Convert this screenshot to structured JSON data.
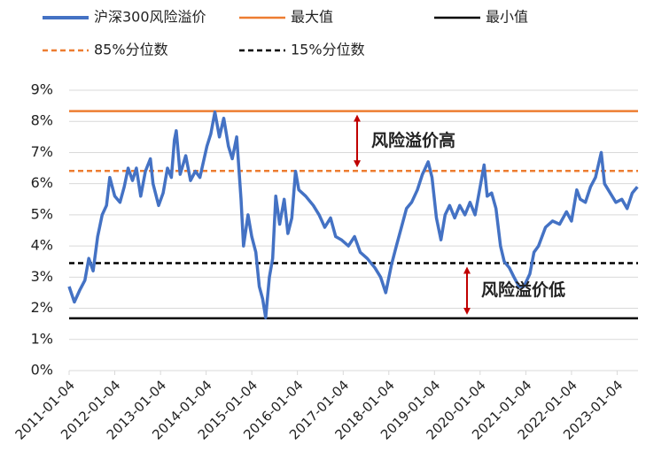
{
  "chart_data": {
    "type": "line",
    "series": [
      {
        "name": "沪深300风险溢价",
        "color": "#4472c4",
        "values": [
          2.7,
          2.2,
          2.6,
          2.9,
          3.6,
          3.2,
          4.3,
          5.0,
          5.3,
          6.2,
          5.6,
          5.4,
          5.9,
          6.5,
          6.1,
          6.5,
          5.6,
          6.4,
          6.8,
          6.0,
          5.3,
          5.7,
          6.5,
          6.2,
          7.4,
          7.7,
          6.3,
          6.9,
          6.1,
          6.4,
          6.2,
          7.2,
          7.6,
          8.3,
          7.5,
          8.1,
          7.2,
          6.8,
          7.5,
          5.5,
          4.0,
          5.0,
          4.3,
          3.8,
          2.7,
          2.3,
          1.7,
          3.0,
          3.6,
          5.6,
          4.7,
          5.5,
          4.4,
          4.9,
          6.4,
          5.8,
          5.6,
          5.3,
          5.0,
          4.6,
          4.9,
          4.3,
          4.2,
          4.0,
          4.3,
          3.8,
          3.6,
          3.3,
          3.0,
          2.5,
          3.4,
          4.0,
          4.6,
          5.2,
          5.4,
          5.8,
          6.3,
          6.7,
          6.2,
          4.9,
          4.2,
          5.0,
          5.3,
          4.9,
          5.3,
          5.0,
          5.4,
          5.0,
          6.6,
          5.6,
          5.7,
          5.2,
          4.0,
          3.5,
          3.3,
          3.0,
          2.7,
          2.7,
          3.1,
          3.8,
          4.0,
          4.6,
          4.8,
          4.7,
          5.1,
          4.8,
          5.8,
          5.5,
          5.4,
          5.9,
          6.2,
          7.0,
          6.0,
          5.4,
          5.5,
          5.2,
          5.7,
          5.9
        ]
      }
    ],
    "x": [
      "2011-01-04",
      "2011-02-15",
      "2011-04-01",
      "2011-05-10",
      "2011-06-10",
      "2011-07-15",
      "2011-08-20",
      "2011-09-25",
      "2011-10-30",
      "2011-11-25",
      "2012-01-04",
      "2012-02-15",
      "2012-03-20",
      "2012-04-20",
      "2012-05-25",
      "2012-06-25",
      "2012-07-30",
      "2012-09-05",
      "2012-10-15",
      "2012-11-05",
      "2012-12-20",
      "2013-01-25",
      "2013-03-01",
      "2013-04-01",
      "2013-04-25",
      "2013-05-10",
      "2013-06-10",
      "2013-07-25",
      "2013-09-01",
      "2013-10-10",
      "2013-11-15",
      "2014-01-10",
      "2014-02-10",
      "2014-03-15",
      "2014-04-20",
      "2014-05-25",
      "2014-07-01",
      "2014-08-01",
      "2014-09-05",
      "2014-10-10",
      "2014-10-30",
      "2014-12-05",
      "2015-01-04",
      "2015-02-05",
      "2015-03-05",
      "2015-04-01",
      "2015-04-25",
      "2015-05-25",
      "2015-06-20",
      "2015-07-15",
      "2015-08-15",
      "2015-09-20",
      "2015-10-20",
      "2015-11-20",
      "2015-12-20",
      "2016-01-15",
      "2016-03-10",
      "2016-05-10",
      "2016-06-25",
      "2016-08-10",
      "2016-09-25",
      "2016-11-05",
      "2016-12-20",
      "2017-02-15",
      "2017-04-05",
      "2017-05-20",
      "2017-07-15",
      "2017-09-15",
      "2017-10-30",
      "2017-12-10",
      "2018-01-25",
      "2018-03-05",
      "2018-04-15",
      "2018-05-25",
      "2018-07-05",
      "2018-08-20",
      "2018-09-30",
      "2018-11-15",
      "2018-12-15",
      "2019-01-20",
      "2019-02-25",
      "2019-03-30",
      "2019-05-05",
      "2019-06-15",
      "2019-07-25",
      "2019-09-05",
      "2019-10-15",
      "2019-11-25",
      "2020-02-05",
      "2020-03-01",
      "2020-04-05",
      "2020-05-10",
      "2020-06-15",
      "2020-07-15",
      "2020-08-25",
      "2020-10-01",
      "2020-11-10",
      "2020-12-20",
      "2021-02-05",
      "2021-03-10",
      "2021-04-15",
      "2021-06-10",
      "2021-08-05",
      "2021-10-01",
      "2021-11-25",
      "2022-01-04",
      "2022-02-15",
      "2022-03-15",
      "2022-04-25",
      "2022-06-05",
      "2022-07-15",
      "2022-08-30",
      "2022-09-25",
      "2022-12-25",
      "2023-02-10",
      "2023-03-25",
      "2023-05-05",
      "2023-06-15"
    ],
    "reference_lines": [
      {
        "name": "最大值",
        "value": 8.33,
        "color": "#ed7d31",
        "style": "solid"
      },
      {
        "name": "最小值",
        "value": 1.68,
        "color": "#000000",
        "style": "solid"
      },
      {
        "name": "85%分位数",
        "value": 6.41,
        "color": "#ed7d31",
        "style": "dashed"
      },
      {
        "name": "15%分位数",
        "value": 3.45,
        "color": "#000000",
        "style": "dashed"
      }
    ],
    "annotations": [
      "风险溢价高",
      "风险溢价低"
    ],
    "annotation_color": "#c00000",
    "xlim": [
      "2011-01-04",
      "2023-06-20"
    ],
    "xticks": [
      "2011-01-04",
      "2012-01-04",
      "2013-01-04",
      "2014-01-04",
      "2015-01-04",
      "2016-01-04",
      "2017-01-04",
      "2018-01-04",
      "2019-01-04",
      "2020-01-04",
      "2021-01-04",
      "2022-01-04",
      "2023-01-04"
    ],
    "ylim": [
      0,
      9
    ],
    "yticks": [
      {
        "value": 0,
        "label": "0%"
      },
      {
        "value": 1,
        "label": "1%"
      },
      {
        "value": 2,
        "label": "2%"
      },
      {
        "value": 3,
        "label": "3%"
      },
      {
        "value": 4,
        "label": "4%"
      },
      {
        "value": 5,
        "label": "5%"
      },
      {
        "value": 6,
        "label": "6%"
      },
      {
        "value": 7,
        "label": "7%"
      },
      {
        "value": 8,
        "label": "8%"
      },
      {
        "value": 9,
        "label": "9%"
      }
    ],
    "grid": true
  }
}
